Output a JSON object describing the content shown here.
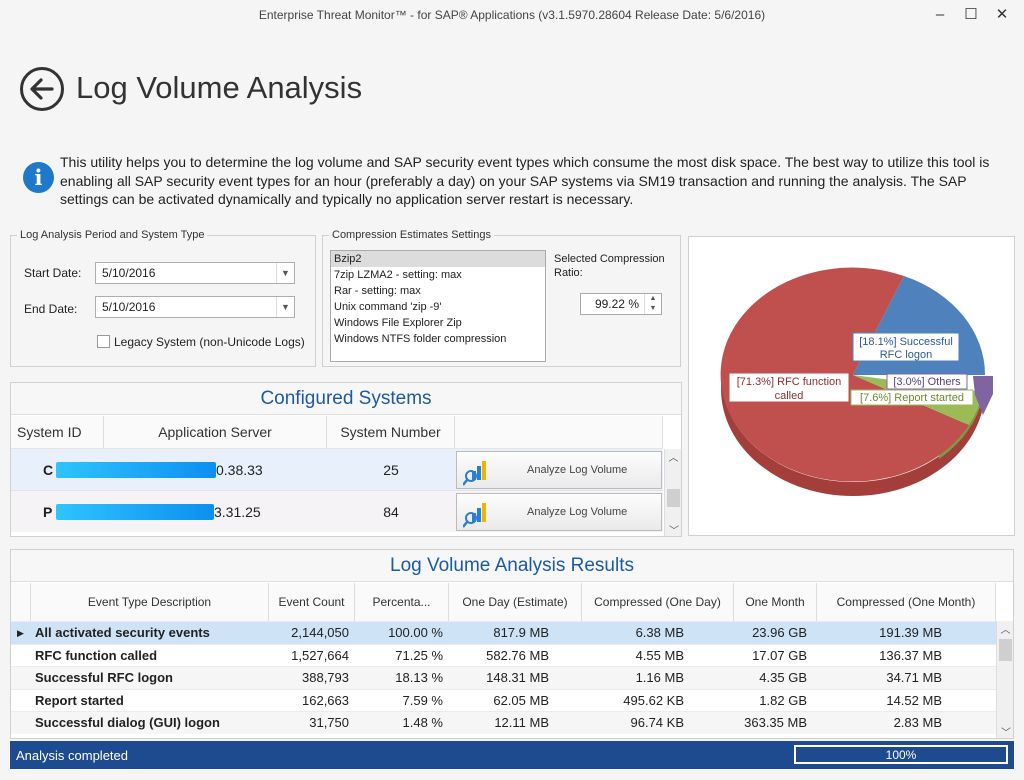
{
  "window": {
    "title": "Enterprise Threat Monitor™ - for SAP® Applications (v3.1.5970.28604 Release Date: 5/6/2016)",
    "minimize_glyph": "–",
    "maximize_glyph": "☐",
    "close_glyph": "✕"
  },
  "page": {
    "title": "Log Volume Analysis",
    "info": "This utility helps you to determine the log volume and SAP security event types which consume the most disk space. The best way to utilize this tool is enabling all SAP security event types for an hour (preferably a day) on your SAP systems via SM19 transaction and running the analysis. The SAP settings can be activated dynamically and typically no application server restart is necessary."
  },
  "period": {
    "legend": "Log Analysis Period and System Type",
    "start_label": "Start Date:",
    "start_value": "5/10/2016",
    "end_label": "End Date:",
    "end_value": "5/10/2016",
    "legacy_label": "Legacy System (non-Unicode Logs)",
    "legacy_checked": false
  },
  "compression": {
    "legend": "Compression Estimates Settings",
    "options": [
      "Bzip2",
      "7zip LZMA2 - setting: max",
      "Rar - setting: max",
      "Unix command 'zip -9'",
      "Windows File Explorer Zip",
      "Windows NTFS folder compression"
    ],
    "selected_index": 0,
    "ratio_label": "Selected Compression Ratio:",
    "ratio_value": "99.22 %"
  },
  "pie": {
    "slices": [
      {
        "label": "[71.3%] RFC function called",
        "value": 71.3,
        "color": "#c0504d"
      },
      {
        "label": "[18.1%] Successful RFC logon",
        "value": 18.1,
        "color": "#4f81bd"
      },
      {
        "label": "[7.6%] Report started",
        "value": 7.6,
        "color": "#9bbb59"
      },
      {
        "label": "[3.0%] Others",
        "value": 3.0,
        "color": "#8064a2"
      }
    ],
    "labels": {
      "rfc_function_l1": "[71.3%] RFC function",
      "rfc_function_l2": "called",
      "successful_rfc_l1": "[18.1%] Successful",
      "successful_rfc_l2": "RFC logon",
      "others": "[3.0%] Others",
      "report": "[7.6%] Report started"
    }
  },
  "systems": {
    "caption": "Configured Systems",
    "columns": [
      "System ID",
      "Application Server",
      "System Number",
      ""
    ],
    "rows": [
      {
        "system_id": "C",
        "server": "0.38.33",
        "number": "25",
        "button": "Analyze Log Volume"
      },
      {
        "system_id": "P",
        "server": "3.31.25",
        "number": "84",
        "button": "Analyze Log Volume"
      }
    ]
  },
  "results": {
    "caption": "Log Volume Analysis Results",
    "columns": [
      "Event Type Description",
      "Event Count",
      "Percenta...",
      "One Day (Estimate)",
      "Compressed (One Day)",
      "One Month",
      "Compressed (One Month)"
    ],
    "rows": [
      [
        "All activated security events",
        "2,144,050",
        "100.00 %",
        "817.9 MB",
        "6.38 MB",
        "23.96 GB",
        "191.39 MB"
      ],
      [
        "RFC function called",
        "1,527,664",
        "71.25 %",
        "582.76 MB",
        "4.55 MB",
        "17.07 GB",
        "136.37 MB"
      ],
      [
        "Successful RFC logon",
        "388,793",
        "18.13 %",
        "148.31 MB",
        "1.16 MB",
        "4.35 GB",
        "34.71 MB"
      ],
      [
        "Report started",
        "162,663",
        "7.59 %",
        "62.05 MB",
        "495.62 KB",
        "1.82 GB",
        "14.52 MB"
      ],
      [
        "Successful dialog (GUI) logon",
        "31,750",
        "1.48 %",
        "12.11 MB",
        "96.74 KB",
        "363.35 MB",
        "2.83 MB"
      ]
    ]
  },
  "status": {
    "text": "Analysis completed",
    "progress_text": "100%",
    "progress_fraction": 1.0
  }
}
